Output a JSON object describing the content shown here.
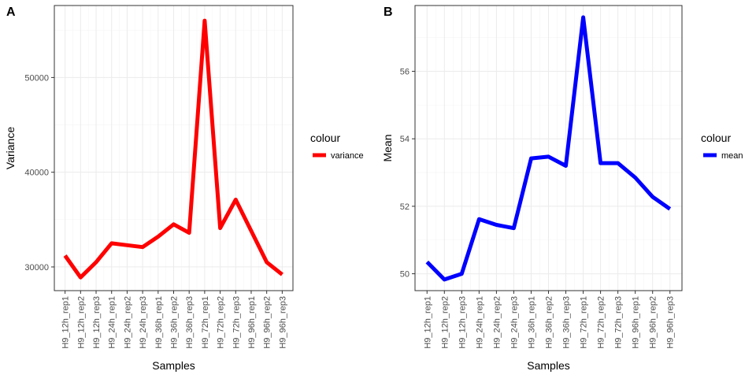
{
  "chart_data": [
    {
      "type": "line",
      "panel": "A",
      "x": [
        "H9_12h_rep1",
        "H9_12h_rep2",
        "H9_12h_rep3",
        "H9_24h_rep1",
        "H9_24h_rep2",
        "H9_24h_rep3",
        "H9_36h_rep1",
        "H9_36h_rep2",
        "H9_36h_rep3",
        "H9_72h_rep1",
        "H9_72h_rep2",
        "H9_72h_rep3",
        "H9_96h_rep1",
        "H9_96h_rep2",
        "H9_96h_rep3"
      ],
      "series": [
        {
          "name": "variance",
          "color": "#ff0000",
          "values": [
            31200,
            28900,
            30500,
            32500,
            32300,
            32100,
            33200,
            34500,
            33600,
            56000,
            34100,
            37100,
            33800,
            30500,
            29200
          ]
        }
      ],
      "xlabel": "Samples",
      "ylabel": "Variance",
      "yticks": [
        30000,
        40000,
        50000
      ],
      "ylim": [
        27500,
        57600
      ],
      "legend_title": "colour",
      "legend_position": "right",
      "grid": true
    },
    {
      "type": "line",
      "panel": "B",
      "x": [
        "H9_12h_rep1",
        "H9_12h_rep2",
        "H9_12h_rep3",
        "H9_24h_rep1",
        "H9_24h_rep2",
        "H9_24h_rep3",
        "H9_36h_rep1",
        "H9_36h_rep2",
        "H9_36h_rep3",
        "H9_72h_rep1",
        "H9_72h_rep2",
        "H9_72h_rep3",
        "H9_96h_rep1",
        "H9_96h_rep2",
        "H9_96h_rep3"
      ],
      "series": [
        {
          "name": "mean",
          "color": "#0000ff",
          "values": [
            50.35,
            49.83,
            50.0,
            51.62,
            51.45,
            51.35,
            53.42,
            53.47,
            53.2,
            57.6,
            53.28,
            53.28,
            52.85,
            52.28,
            51.92
          ]
        }
      ],
      "xlabel": "Samples",
      "ylabel": "Mean",
      "yticks": [
        50,
        52,
        54,
        56
      ],
      "ylim": [
        49.5,
        57.95
      ],
      "legend_title": "colour",
      "legend_position": "right",
      "grid": true
    }
  ]
}
